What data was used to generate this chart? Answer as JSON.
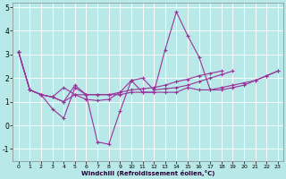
{
  "xlabel": "Windchill (Refroidissement éolien,°C)",
  "background_color": "#b8e8e8",
  "line_color": "#993399",
  "grid_color": "#ffffff",
  "xlim": [
    -0.5,
    23.5
  ],
  "ylim": [
    -1.5,
    5.2
  ],
  "xticks": [
    0,
    1,
    2,
    3,
    4,
    5,
    6,
    7,
    8,
    9,
    10,
    11,
    12,
    13,
    14,
    15,
    16,
    17,
    18,
    19,
    20,
    21,
    22,
    23
  ],
  "yticks": [
    -1,
    0,
    1,
    2,
    3,
    4,
    5
  ],
  "s1": [
    3.1,
    1.5,
    1.3,
    0.7,
    0.3,
    1.6,
    1.3,
    -0.7,
    -0.8,
    0.6,
    1.9,
    1.4,
    1.4,
    3.2,
    4.8,
    3.8,
    2.9,
    1.5,
    1.5,
    1.6,
    1.7,
    1.9,
    2.1,
    2.3
  ],
  "s2": [
    3.1,
    1.5,
    1.3,
    1.2,
    1.0,
    1.7,
    1.3,
    1.3,
    1.3,
    1.3,
    1.4,
    1.4,
    1.4,
    1.4,
    1.4,
    1.6,
    1.5,
    1.5,
    1.6,
    1.7,
    1.8,
    1.9,
    2.1,
    2.3
  ],
  "s3": [
    3.1,
    1.5,
    1.3,
    1.2,
    1.6,
    1.3,
    1.1,
    1.05,
    1.1,
    1.4,
    1.9,
    2.0,
    1.5,
    1.55,
    1.6,
    1.7,
    1.85,
    2.0,
    2.15,
    2.3
  ],
  "s4": [
    3.1,
    1.5,
    1.3,
    1.2,
    1.0,
    1.3,
    1.3,
    1.3,
    1.3,
    1.4,
    1.5,
    1.55,
    1.6,
    1.7,
    1.85,
    1.95,
    2.1,
    2.2,
    2.3
  ]
}
